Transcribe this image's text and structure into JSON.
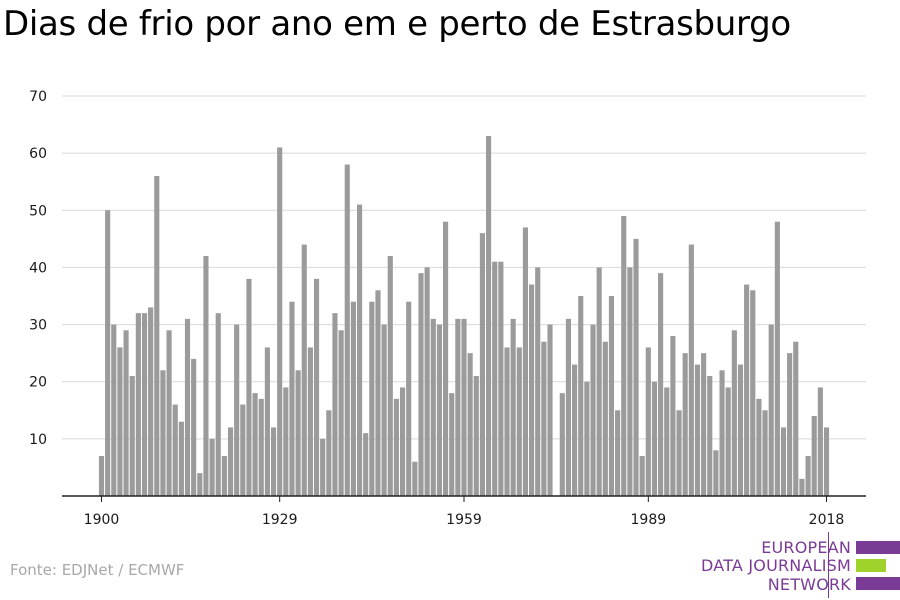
{
  "title": "Dias de frio por ano em e perto de Estrasburgo",
  "source": "Fonte: EDJNet / ECMWF",
  "logo": {
    "line1": "EUROPEAN",
    "line2": "DATA JOURNALISM",
    "line3": "NETWORK",
    "colors": {
      "purple": "#7a3b97",
      "green": "#9fd22b"
    }
  },
  "colors": {
    "bar": "#9b9b9b",
    "grid": "#d9d9d9",
    "axis": "#222222"
  },
  "chart_data": {
    "type": "bar",
    "title": "Dias de frio por ano em e perto de Estrasburgo",
    "xlabel": "",
    "ylabel": "",
    "ylim": [
      0,
      70
    ],
    "yticks": [
      10,
      20,
      30,
      40,
      50,
      60,
      70
    ],
    "xticks": [
      1900,
      1929,
      1959,
      1989,
      2018
    ],
    "grid": true,
    "x": [
      1900,
      1901,
      1902,
      1903,
      1904,
      1905,
      1906,
      1907,
      1908,
      1909,
      1910,
      1911,
      1912,
      1913,
      1914,
      1915,
      1916,
      1917,
      1918,
      1919,
      1920,
      1921,
      1922,
      1923,
      1924,
      1925,
      1926,
      1927,
      1928,
      1929,
      1930,
      1931,
      1932,
      1933,
      1934,
      1935,
      1936,
      1937,
      1938,
      1939,
      1940,
      1941,
      1942,
      1943,
      1944,
      1945,
      1946,
      1947,
      1948,
      1949,
      1950,
      1951,
      1952,
      1953,
      1954,
      1955,
      1956,
      1957,
      1958,
      1959,
      1960,
      1961,
      1962,
      1963,
      1964,
      1965,
      1966,
      1967,
      1968,
      1969,
      1970,
      1971,
      1972,
      1973,
      1974,
      1975,
      1976,
      1977,
      1978,
      1979,
      1980,
      1981,
      1982,
      1983,
      1984,
      1985,
      1986,
      1987,
      1988,
      1989,
      1990,
      1991,
      1992,
      1993,
      1994,
      1995,
      1996,
      1997,
      1998,
      1999,
      2000,
      2001,
      2002,
      2003,
      2004,
      2005,
      2006,
      2007,
      2008,
      2009,
      2010,
      2011,
      2012,
      2013,
      2014,
      2015,
      2016,
      2017,
      2018
    ],
    "values": [
      7,
      50,
      30,
      26,
      29,
      21,
      32,
      32,
      33,
      56,
      22,
      29,
      16,
      13,
      31,
      24,
      4,
      42,
      10,
      32,
      7,
      12,
      30,
      16,
      38,
      18,
      17,
      26,
      12,
      61,
      19,
      34,
      22,
      44,
      26,
      38,
      10,
      15,
      32,
      29,
      58,
      34,
      51,
      11,
      34,
      36,
      30,
      42,
      17,
      19,
      34,
      6,
      39,
      40,
      31,
      30,
      48,
      18,
      31,
      31,
      25,
      21,
      46,
      63,
      41,
      41,
      26,
      31,
      26,
      47,
      37,
      40,
      27,
      30,
      0,
      18,
      31,
      23,
      35,
      20,
      30,
      40,
      27,
      35,
      15,
      49,
      40,
      45,
      7,
      26,
      20,
      39,
      19,
      28,
      15,
      25,
      44,
      23,
      25,
      21,
      8,
      22,
      19,
      29,
      23,
      37,
      36,
      17,
      15,
      30,
      48,
      12,
      25,
      27,
      3,
      7,
      14,
      19,
      12
    ]
  }
}
